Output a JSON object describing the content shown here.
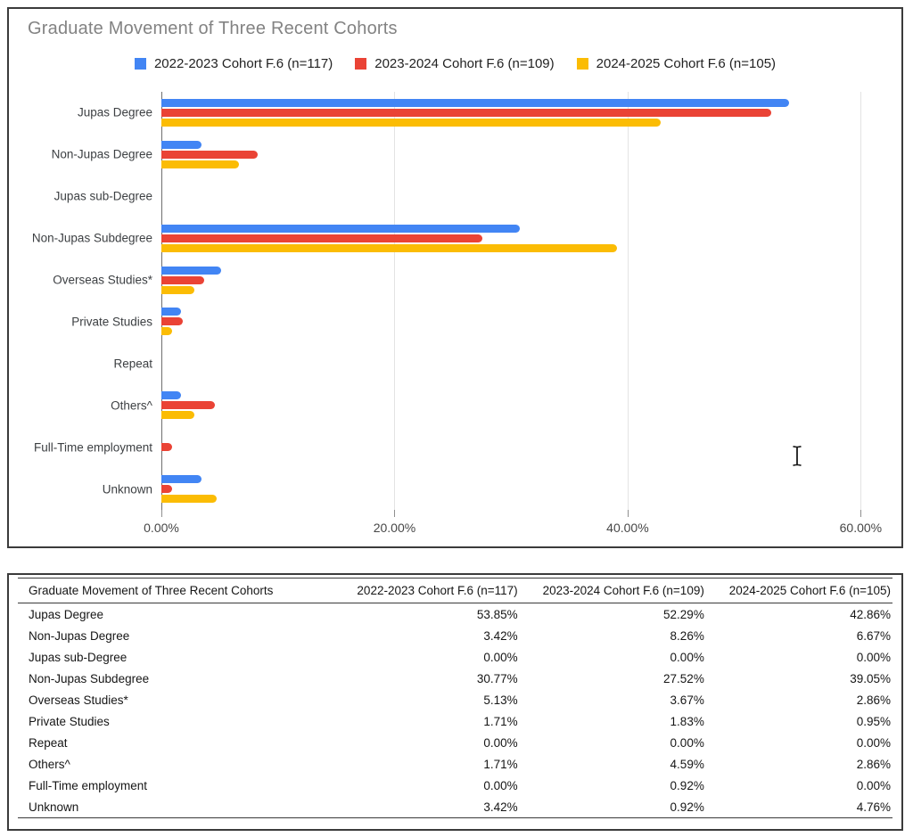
{
  "chart": {
    "title": "Graduate Movement of Three Recent Cohorts"
  },
  "chart_data": {
    "type": "bar",
    "orientation": "horizontal",
    "title": "Graduate Movement of Three Recent Cohorts",
    "categories": [
      "Jupas Degree",
      "Non-Jupas Degree",
      "Jupas sub-Degree",
      "Non-Jupas Subdegree",
      "Overseas Studies*",
      "Private Studies",
      "Repeat",
      "Others^",
      "Full-Time employment",
      "Unknown"
    ],
    "series": [
      {
        "name": "2022-2023 Cohort F.6 (n=117)",
        "color": "#4285F4",
        "values": [
          53.85,
          3.42,
          0.0,
          30.77,
          5.13,
          1.71,
          0.0,
          1.71,
          0.0,
          3.42
        ]
      },
      {
        "name": "2023-2024 Cohort F.6 (n=109)",
        "color": "#EA4335",
        "values": [
          52.29,
          8.26,
          0.0,
          27.52,
          3.67,
          1.83,
          0.0,
          4.59,
          0.92,
          0.92
        ]
      },
      {
        "name": "2024-2025 Cohort F.6 (n=105)",
        "color": "#FBBC04",
        "values": [
          42.86,
          6.67,
          0.0,
          39.05,
          2.86,
          0.95,
          0.0,
          2.86,
          0.0,
          4.76
        ]
      }
    ],
    "xlabel": "",
    "ylabel": "",
    "x_tick_labels": [
      "0.00%",
      "20.00%",
      "40.00%",
      "60.00%"
    ],
    "x_tick_values": [
      0,
      20,
      40,
      60
    ],
    "xlim": [
      0,
      61.5
    ],
    "grid": true,
    "legend_position": "top",
    "value_format": "percent"
  },
  "table": {
    "header": [
      "Graduate Movement of Three Recent Cohorts",
      "2022-2023 Cohort F.6 (n=117)",
      "2023-2024 Cohort F.6 (n=109)",
      "2024-2025 Cohort F.6 (n=105)"
    ],
    "rows": [
      [
        "Jupas Degree",
        "53.85%",
        "52.29%",
        "42.86%"
      ],
      [
        "Non-Jupas Degree",
        "3.42%",
        "8.26%",
        "6.67%"
      ],
      [
        "Jupas sub-Degree",
        "0.00%",
        "0.00%",
        "0.00%"
      ],
      [
        "Non-Jupas Subdegree",
        "30.77%",
        "27.52%",
        "39.05%"
      ],
      [
        "Overseas Studies*",
        "5.13%",
        "3.67%",
        "2.86%"
      ],
      [
        "Private Studies",
        "1.71%",
        "1.83%",
        "0.95%"
      ],
      [
        "Repeat",
        "0.00%",
        "0.00%",
        "0.00%"
      ],
      [
        "Others^",
        "1.71%",
        "4.59%",
        "2.86%"
      ],
      [
        "Full-Time employment",
        "0.00%",
        "0.92%",
        "0.00%"
      ],
      [
        "Unknown",
        "3.42%",
        "0.92%",
        "4.76%"
      ]
    ]
  },
  "cursor": {
    "type": "text-ibeam",
    "color": "#1a1a1a"
  }
}
